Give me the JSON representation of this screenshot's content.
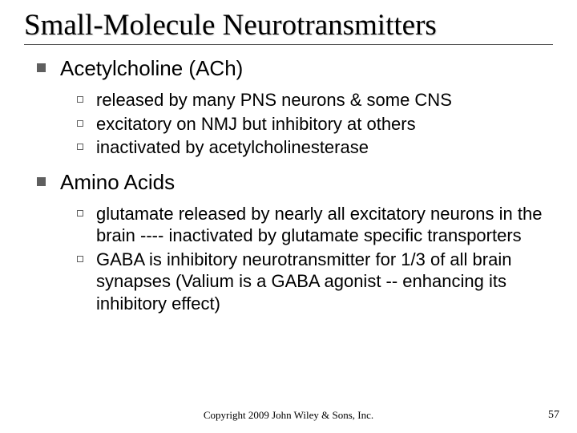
{
  "title": "Small-Molecule Neurotransmitters",
  "sections": [
    {
      "heading": "Acetylcholine (ACh)",
      "items": [
        "released by many PNS neurons & some CNS",
        "excitatory on NMJ but inhibitory at others",
        "inactivated by acetylcholinesterase"
      ]
    },
    {
      "heading": "Amino Acids",
      "items": [
        "glutamate released by nearly all excitatory neurons in the brain ---- inactivated by glutamate specific transporters",
        "GABA is inhibitory neurotransmitter for 1/3 of all brain synapses (Valium is a GABA agonist -- enhancing its inhibitory effect)"
      ]
    }
  ],
  "footer": "Copyright 2009 John Wiley & Sons, Inc.",
  "page_number": "57"
}
